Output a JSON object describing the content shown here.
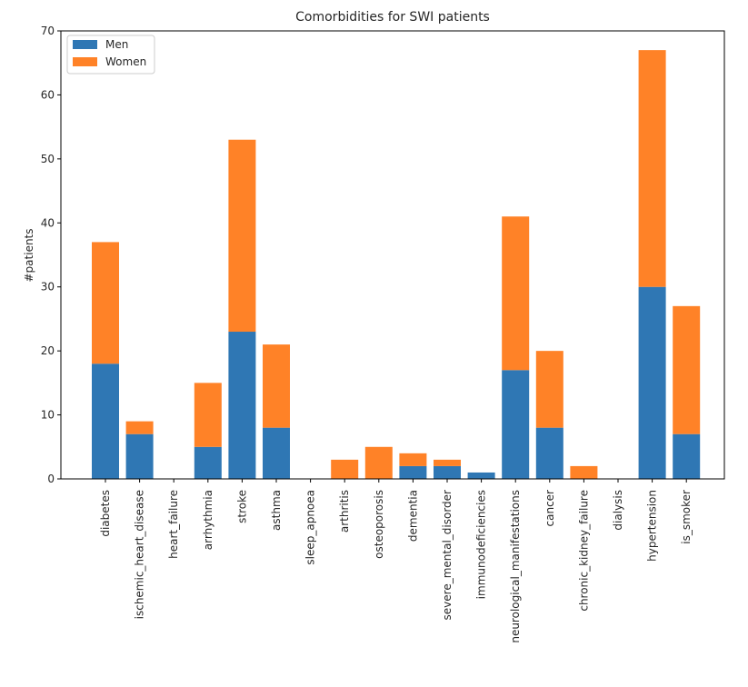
{
  "chart_data": {
    "type": "bar",
    "stacked": true,
    "title": "Comorbidities for SWI patients",
    "xlabel": "",
    "ylabel": "#patients",
    "ylim": [
      0,
      70
    ],
    "yticks": [
      0,
      10,
      20,
      30,
      40,
      50,
      60,
      70
    ],
    "legend_position": "top-left",
    "grid": false,
    "categories": [
      "diabetes",
      "ischemic_heart_disease",
      "heart_failure",
      "arrhythmia",
      "stroke",
      "asthma",
      "sleep_apnoea",
      "arthritis",
      "osteoporosis",
      "dementia",
      "severe_mental_disorder",
      "immunodeficiencies",
      "neurological_manifestations",
      "cancer",
      "chronic_kidney_failure",
      "dialysis",
      "hypertension",
      "is_smoker"
    ],
    "series": [
      {
        "name": "Men",
        "color": "#2f77b4",
        "values": [
          18,
          7,
          0,
          5,
          23,
          8,
          0,
          0,
          0,
          2,
          2,
          1,
          17,
          8,
          0,
          0,
          30,
          7
        ]
      },
      {
        "name": "Women",
        "color": "#ff8227",
        "values": [
          19,
          2,
          0,
          10,
          30,
          13,
          0,
          3,
          5,
          2,
          1,
          0,
          24,
          12,
          2,
          0,
          37,
          20
        ]
      }
    ]
  }
}
